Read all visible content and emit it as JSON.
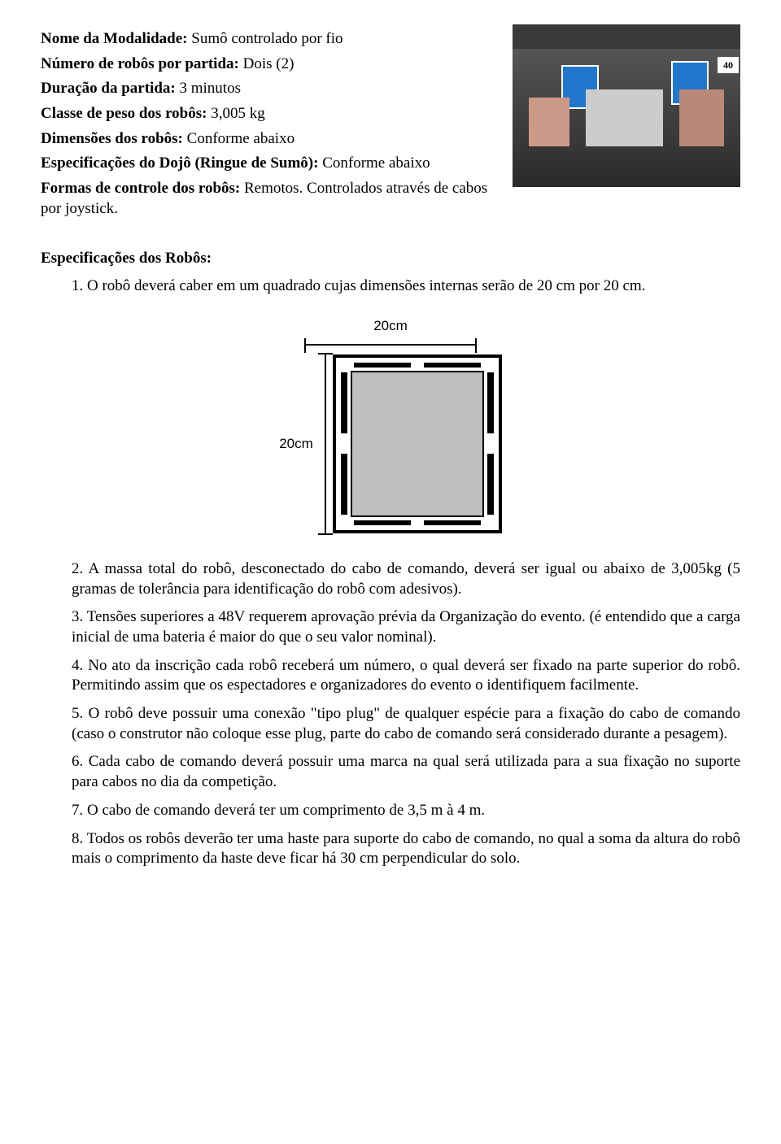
{
  "header": {
    "modalidade": {
      "label": "Nome da Modalidade:",
      "value": "Sumô controlado por fio"
    },
    "numero_robos": {
      "label": "Número de robôs por partida:",
      "value": "Dois (2)"
    },
    "duracao": {
      "label": "Duração da partida:",
      "value": "3 minutos"
    },
    "classe_peso": {
      "label": "Classe de peso dos robôs:",
      "value": "3,005 kg"
    },
    "dimensoes": {
      "label": "Dimensões dos robôs:",
      "value": "Conforme abaixo"
    },
    "dojo": {
      "label": "Especificações do Dojô (Ringue de Sumô):",
      "value": "Conforme abaixo"
    },
    "controle": {
      "label": "Formas de controle dos robôs:",
      "value": "Remotos. Controlados através de cabos por joystick."
    }
  },
  "photo_tag": "40",
  "section_title": "Especificações dos Robôs:",
  "items": {
    "i1": "1. O robô deverá caber em um quadrado cujas dimensões internas serão de 20 cm por 20 cm.",
    "i2": "2. A massa total do robô, desconectado do cabo de comando, deverá ser igual ou abaixo de 3,005kg (5 gramas de tolerância para identificação do robô com adesivos).",
    "i3": "3. Tensões superiores a 48V requerem aprovação prévia da Organização do evento. (é entendido que a carga inicial de uma bateria é maior do que o seu valor nominal).",
    "i4": "4. No ato da inscrição cada robô receberá um número, o qual deverá ser fixado na parte superior do robô. Permitindo assim que os espectadores e organizadores do evento o identifiquem facilmente.",
    "i5": "5. O robô deve possuir uma conexão \"tipo plug\" de qualquer espécie para a fixação do cabo de comando (caso o construtor não coloque esse plug, parte do cabo de comando será considerado durante a pesagem).",
    "i6": "6. Cada cabo de comando deverá possuir uma marca na qual será utilizada para a sua fixação no suporte para cabos no dia da competição.",
    "i7": "7. O cabo de comando deverá ter um comprimento de 3,5 m à 4 m.",
    "i8": "8. Todos os robôs deverão ter uma haste para suporte do cabo de comando, no qual a soma da altura do robô mais o comprimento da haste deve ficar há 30 cm perpendicular do solo."
  },
  "diagram": {
    "width_label": "20cm",
    "height_label": "20cm"
  }
}
